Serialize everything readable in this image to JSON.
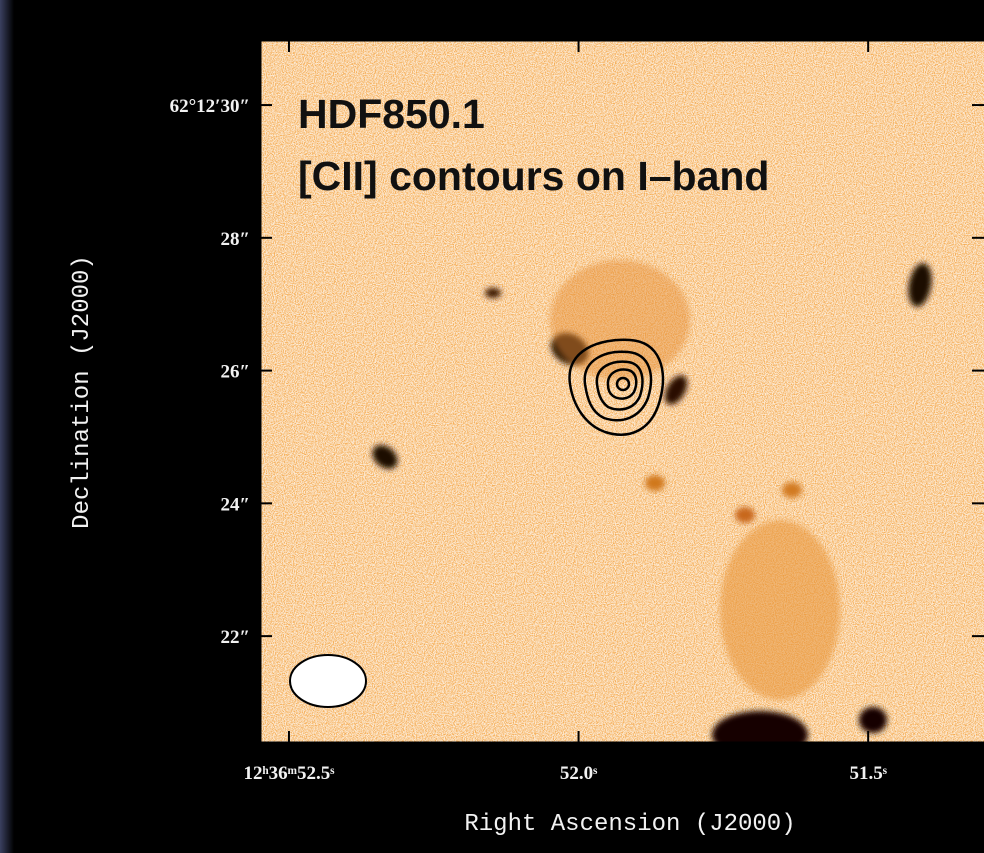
{
  "chart_data": {
    "type": "image",
    "title": [
      "HDF850.1",
      "[CII] contours on I–band"
    ],
    "x_label": "Right Ascension (J2000)",
    "y_label": "Declination (J2000)",
    "xlim": [
      52.55,
      51.3
    ],
    "ylim": [
      20.39,
      30.98
    ],
    "xticks": [
      {
        "value": 52.5,
        "label": "12ʰ36ᵐ52.5ˢ"
      },
      {
        "value": 52.0,
        "label": "52.0ˢ"
      },
      {
        "value": 51.5,
        "label": "51.5ˢ"
      }
    ],
    "yticks": [
      {
        "value": 30,
        "label": "62°12′30″"
      },
      {
        "value": 28,
        "label": "28″"
      },
      {
        "value": 26,
        "label": "26″"
      },
      {
        "value": 24,
        "label": "24″"
      },
      {
        "value": 22,
        "label": "22″"
      }
    ]
  }
}
